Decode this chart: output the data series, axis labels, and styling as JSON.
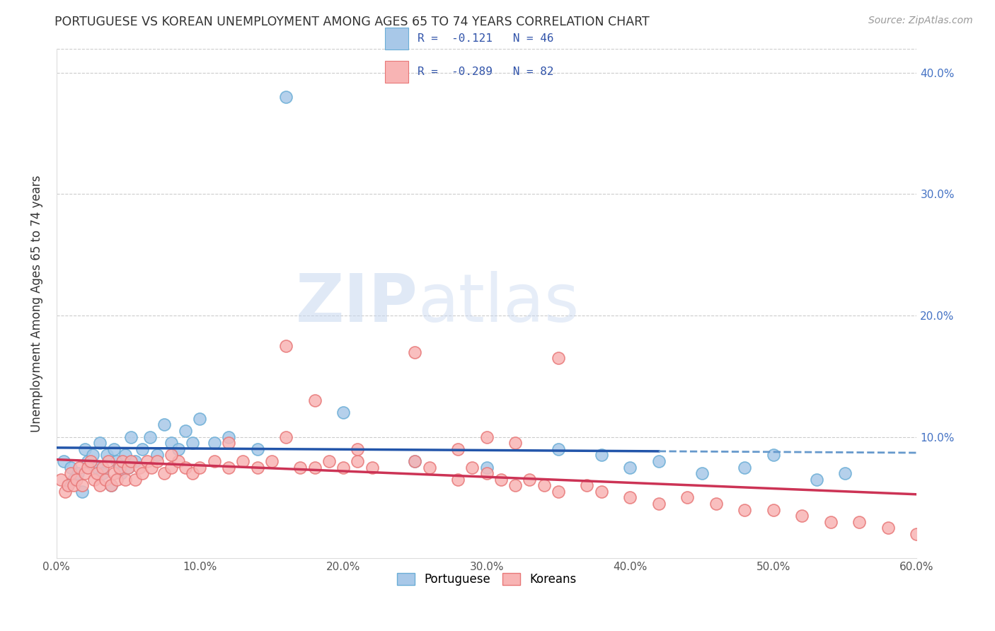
{
  "title": "PORTUGUESE VS KOREAN UNEMPLOYMENT AMONG AGES 65 TO 74 YEARS CORRELATION CHART",
  "source": "Source: ZipAtlas.com",
  "ylabel": "Unemployment Among Ages 65 to 74 years",
  "xlim": [
    0.0,
    0.6
  ],
  "ylim": [
    0.0,
    0.42
  ],
  "xticks": [
    0.0,
    0.1,
    0.2,
    0.3,
    0.4,
    0.5,
    0.6
  ],
  "xticklabels": [
    "0.0%",
    "10.0%",
    "20.0%",
    "30.0%",
    "40.0%",
    "50.0%",
    "60.0%"
  ],
  "yticks": [
    0.0,
    0.1,
    0.2,
    0.3,
    0.4
  ],
  "right_yticklabels": [
    "",
    "10.0%",
    "20.0%",
    "30.0%",
    "40.0%"
  ],
  "portuguese_color": "#a8c8e8",
  "portuguese_edge_color": "#6baed6",
  "korean_color": "#f8b4b4",
  "korean_edge_color": "#e87878",
  "portuguese_line_color": "#2255aa",
  "portuguese_line_dashed_color": "#6699cc",
  "korean_line_color": "#cc3355",
  "portuguese_R": -0.121,
  "portuguese_N": 46,
  "korean_R": -0.289,
  "korean_N": 82,
  "watermark_zip": "ZIP",
  "watermark_atlas": "atlas",
  "portuguese_x": [
    0.005,
    0.008,
    0.01,
    0.012,
    0.015,
    0.018,
    0.02,
    0.022,
    0.025,
    0.028,
    0.03,
    0.032,
    0.035,
    0.038,
    0.04,
    0.042,
    0.045,
    0.048,
    0.05,
    0.052,
    0.055,
    0.06,
    0.065,
    0.07,
    0.075,
    0.08,
    0.085,
    0.09,
    0.095,
    0.1,
    0.11,
    0.12,
    0.14,
    0.16,
    0.2,
    0.25,
    0.3,
    0.35,
    0.38,
    0.4,
    0.42,
    0.45,
    0.48,
    0.5,
    0.53,
    0.55
  ],
  "portuguese_y": [
    0.08,
    0.06,
    0.075,
    0.065,
    0.07,
    0.055,
    0.09,
    0.08,
    0.085,
    0.075,
    0.095,
    0.07,
    0.085,
    0.06,
    0.09,
    0.08,
    0.07,
    0.085,
    0.075,
    0.1,
    0.08,
    0.09,
    0.1,
    0.085,
    0.11,
    0.095,
    0.09,
    0.105,
    0.095,
    0.115,
    0.095,
    0.1,
    0.09,
    0.38,
    0.12,
    0.08,
    0.075,
    0.09,
    0.085,
    0.075,
    0.08,
    0.07,
    0.075,
    0.085,
    0.065,
    0.07
  ],
  "korean_x": [
    0.003,
    0.006,
    0.008,
    0.01,
    0.012,
    0.014,
    0.016,
    0.018,
    0.02,
    0.022,
    0.024,
    0.026,
    0.028,
    0.03,
    0.032,
    0.034,
    0.036,
    0.038,
    0.04,
    0.042,
    0.044,
    0.046,
    0.048,
    0.05,
    0.052,
    0.055,
    0.058,
    0.06,
    0.063,
    0.066,
    0.07,
    0.075,
    0.08,
    0.085,
    0.09,
    0.095,
    0.1,
    0.11,
    0.12,
    0.13,
    0.14,
    0.15,
    0.16,
    0.17,
    0.18,
    0.19,
    0.2,
    0.21,
    0.22,
    0.25,
    0.26,
    0.28,
    0.29,
    0.3,
    0.31,
    0.32,
    0.33,
    0.34,
    0.35,
    0.37,
    0.38,
    0.4,
    0.42,
    0.44,
    0.46,
    0.48,
    0.5,
    0.52,
    0.54,
    0.56,
    0.58,
    0.6,
    0.25,
    0.3,
    0.35,
    0.28,
    0.32,
    0.18,
    0.21,
    0.16,
    0.12,
    0.08
  ],
  "korean_y": [
    0.065,
    0.055,
    0.06,
    0.07,
    0.06,
    0.065,
    0.075,
    0.06,
    0.07,
    0.075,
    0.08,
    0.065,
    0.07,
    0.06,
    0.075,
    0.065,
    0.08,
    0.06,
    0.07,
    0.065,
    0.075,
    0.08,
    0.065,
    0.075,
    0.08,
    0.065,
    0.075,
    0.07,
    0.08,
    0.075,
    0.08,
    0.07,
    0.075,
    0.08,
    0.075,
    0.07,
    0.075,
    0.08,
    0.075,
    0.08,
    0.075,
    0.08,
    0.1,
    0.075,
    0.075,
    0.08,
    0.075,
    0.08,
    0.075,
    0.08,
    0.075,
    0.065,
    0.075,
    0.07,
    0.065,
    0.06,
    0.065,
    0.06,
    0.055,
    0.06,
    0.055,
    0.05,
    0.045,
    0.05,
    0.045,
    0.04,
    0.04,
    0.035,
    0.03,
    0.03,
    0.025,
    0.02,
    0.17,
    0.1,
    0.165,
    0.09,
    0.095,
    0.13,
    0.09,
    0.175,
    0.095,
    0.085
  ]
}
